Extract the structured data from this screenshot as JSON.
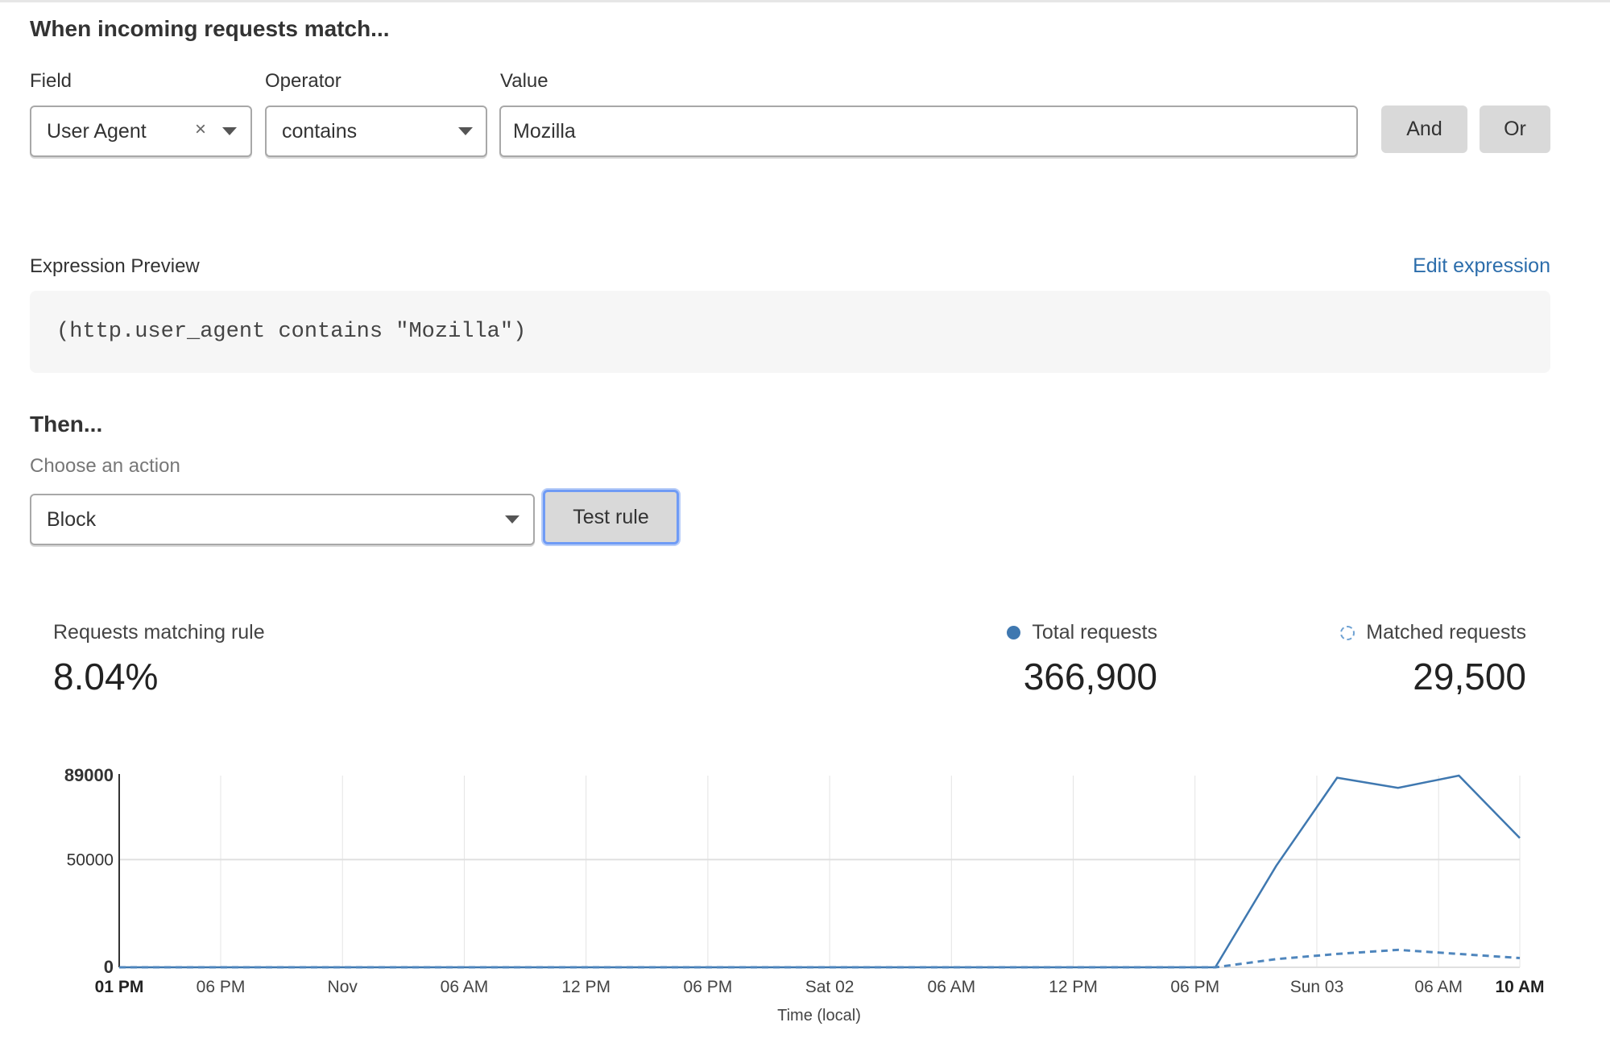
{
  "match_section": {
    "title": "When incoming requests match...",
    "field_label": "Field",
    "operator_label": "Operator",
    "value_label": "Value",
    "field_value": "User Agent",
    "clear_icon": "×",
    "operator_value": "contains",
    "value_value": "Mozilla",
    "and_label": "And",
    "or_label": "Or"
  },
  "expression": {
    "label": "Expression Preview",
    "edit_link": "Edit expression",
    "code": "(http.user_agent contains \"Mozilla\")"
  },
  "then_section": {
    "title": "Then...",
    "action_label": "Choose an action",
    "action_value": "Block",
    "test_button": "Test rule"
  },
  "stats": {
    "matching_label": "Requests matching rule",
    "matching_value": "8.04%",
    "total_label": "Total requests",
    "total_value": "366,900",
    "matched_label": "Matched requests",
    "matched_value": "29,500"
  },
  "colors": {
    "accent": "#2c6dab",
    "series": "#3f78b0",
    "button_bg": "#d9d9d9",
    "focus_ring": "#6f9bf5"
  },
  "chart_data": {
    "type": "line",
    "xlabel": "Time (local)",
    "ylabel": "",
    "ylim": [
      0,
      89000
    ],
    "yticks": [
      "0",
      "50000",
      "89000"
    ],
    "xticks": [
      "01 PM",
      "06 PM",
      "Nov",
      "06 AM",
      "12 PM",
      "06 PM",
      "Sat 02",
      "06 AM",
      "12 PM",
      "06 PM",
      "Sun 03",
      "06 AM",
      "10 AM"
    ],
    "xtick_hours": [
      0,
      5,
      11,
      17,
      23,
      29,
      35,
      41,
      47,
      53,
      59,
      65,
      69
    ],
    "x_hours": [
      0,
      3,
      6,
      9,
      12,
      15,
      18,
      21,
      24,
      27,
      30,
      33,
      36,
      39,
      42,
      45,
      48,
      51,
      54,
      57,
      60,
      63,
      66,
      69
    ],
    "grid": true,
    "series": [
      {
        "name": "Total requests",
        "style": "solid",
        "values": [
          0,
          0,
          0,
          0,
          0,
          0,
          0,
          0,
          0,
          0,
          0,
          0,
          0,
          0,
          0,
          0,
          0,
          0,
          0,
          47100,
          88000,
          83300,
          89000,
          60000
        ]
      },
      {
        "name": "Matched requests",
        "style": "dashed",
        "values": [
          0,
          0,
          0,
          0,
          0,
          0,
          0,
          0,
          0,
          0,
          0,
          0,
          0,
          0,
          0,
          0,
          0,
          0,
          0,
          3800,
          6200,
          8100,
          6200,
          4300
        ]
      }
    ]
  }
}
